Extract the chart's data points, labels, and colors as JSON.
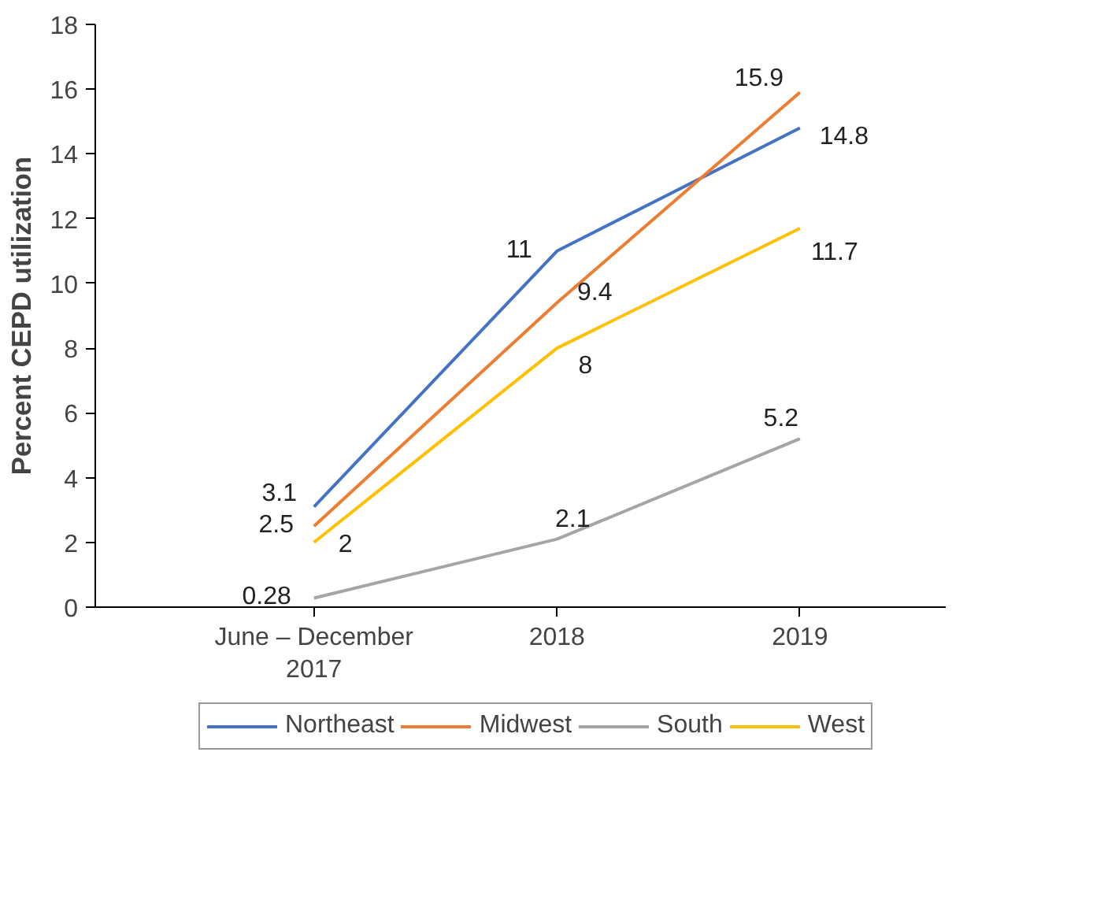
{
  "chart_data": {
    "type": "line",
    "ylabel": "Percent CEPD utilization",
    "categories": [
      "June – December\n2017",
      "2018",
      "2019"
    ],
    "series": [
      {
        "name": "Northeast",
        "color": "#4472c4",
        "values": [
          3.1,
          11,
          14.8
        ]
      },
      {
        "name": "Midwest",
        "color": "#ed7d31",
        "values": [
          2.5,
          9.4,
          15.9
        ]
      },
      {
        "name": "South",
        "color": "#a5a5a5",
        "values": [
          0.28,
          2.1,
          5.2
        ]
      },
      {
        "name": "West",
        "color": "#ffc000",
        "values": [
          2,
          8,
          11.7
        ]
      }
    ],
    "ylim": [
      0,
      18
    ],
    "yticks": [
      0,
      2,
      4,
      6,
      8,
      10,
      12,
      14,
      16,
      18
    ],
    "grid": false,
    "legend": "bottom",
    "data_labels": true,
    "marker": "none",
    "line_style": "solid"
  }
}
